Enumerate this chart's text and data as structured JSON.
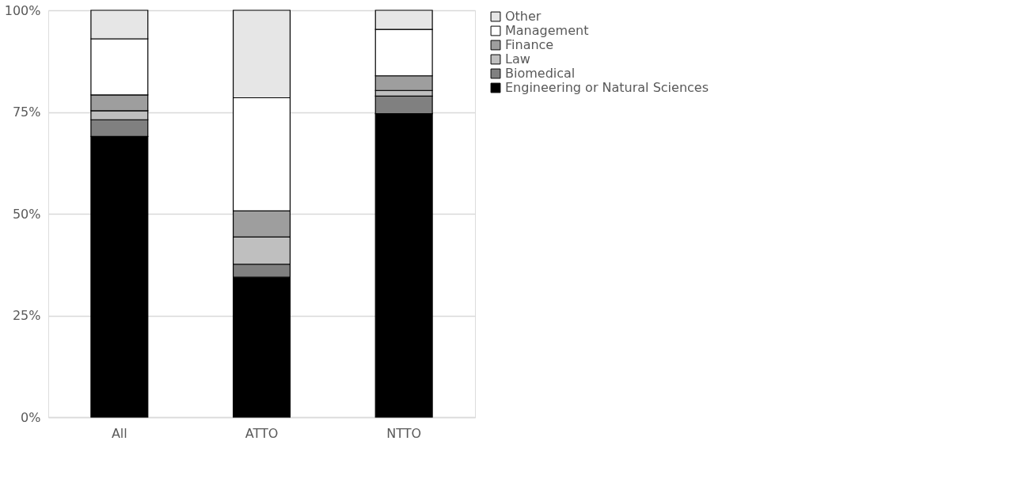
{
  "chart_data": {
    "type": "bar",
    "stacked": true,
    "categories": [
      "All",
      "ATTO",
      "NTTO"
    ],
    "series": [
      {
        "name": "Engineering or Natural Sciences",
        "color": "#000000",
        "values": [
          69.0,
          34.4,
          74.6
        ]
      },
      {
        "name": "Biomedical",
        "color": "#808080",
        "values": [
          4.1,
          3.2,
          4.3
        ]
      },
      {
        "name": "Law",
        "color": "#bfbfbf",
        "values": [
          2.2,
          6.7,
          1.4
        ]
      },
      {
        "name": "Finance",
        "color": "#9e9e9e",
        "values": [
          3.9,
          6.4,
          3.6
        ]
      },
      {
        "name": "Management",
        "color": "#ffffff",
        "values": [
          13.8,
          27.8,
          11.4
        ]
      },
      {
        "name": "Other",
        "color": "#e6e6e6",
        "values": [
          7.0,
          21.5,
          4.7
        ]
      }
    ],
    "ylim": [
      0,
      100
    ],
    "yticks": [
      {
        "value": 0,
        "label": "0%"
      },
      {
        "value": 25,
        "label": "25%"
      },
      {
        "value": 50,
        "label": "50%"
      },
      {
        "value": 75,
        "label": "75%"
      },
      {
        "value": 100,
        "label": "100%"
      }
    ],
    "grid": "y",
    "legend": "right"
  }
}
